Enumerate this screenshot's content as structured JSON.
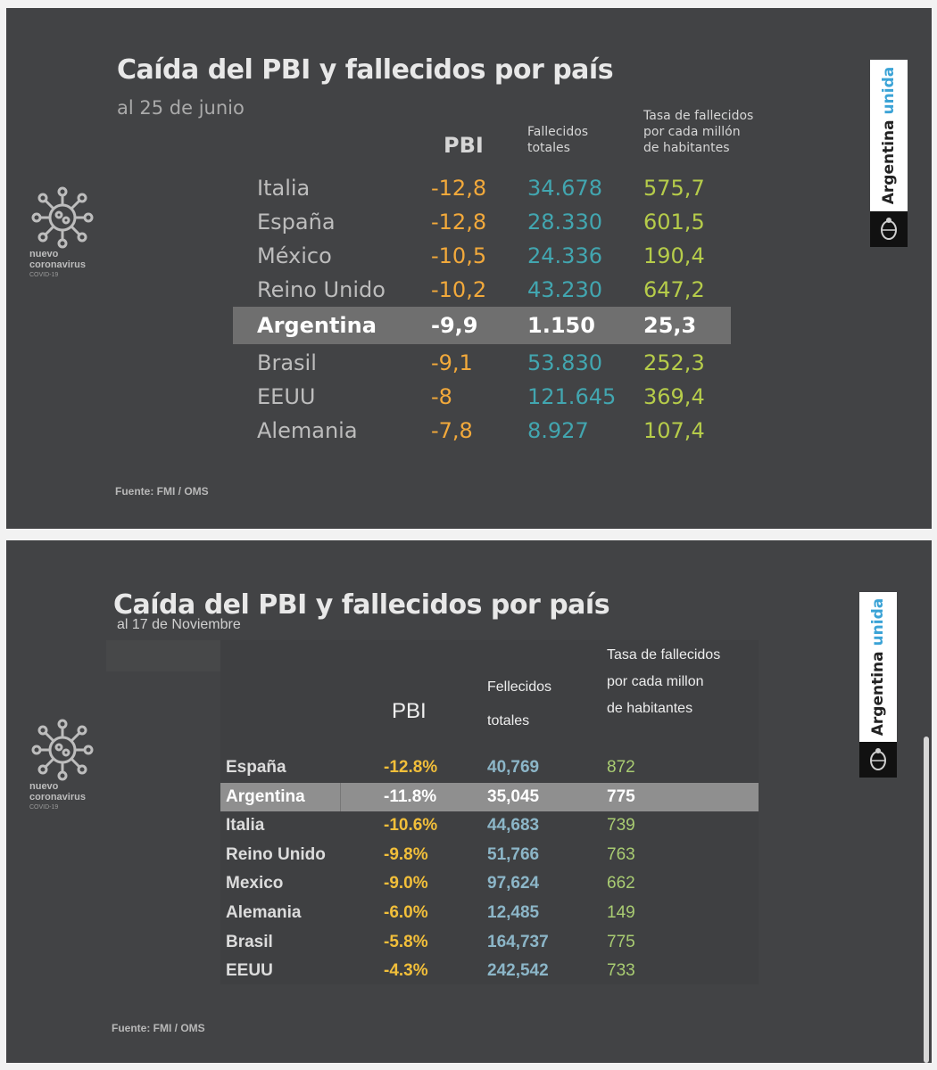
{
  "colors": {
    "panel_bg": "#424345",
    "pbi": "#f2a93b",
    "fallecidos": "#42a6b0",
    "tasa": "#b6cc4a",
    "highlight_bg": "#6f6f6f",
    "badge_accent": "#3ba3d6"
  },
  "branding": {
    "virus_line1": "nuevo",
    "virus_line2": "coronavirus",
    "virus_line3": "COVID-19",
    "badge_text": "Argentina",
    "badge_accent_text": "unida",
    "virus_icon": "virus-icon",
    "shield_icon": "argentina-shield-icon"
  },
  "chart_data": [
    {
      "type": "table",
      "title": "Caída del PBI y fallecidos por país",
      "subtitle": "al 25 de junio",
      "columns": {
        "pbi": "PBI",
        "fallecidos": [
          "Fallecidos",
          "totales"
        ],
        "tasa": [
          "Tasa de fallecidos",
          "por cada millón",
          "de habitantes"
        ]
      },
      "highlight": "Argentina",
      "rows": [
        {
          "country": "Italia",
          "pbi": "-12,8",
          "fallecidos": "34.678",
          "tasa": "575,7"
        },
        {
          "country": "España",
          "pbi": "-12,8",
          "fallecidos": "28.330",
          "tasa": "601,5"
        },
        {
          "country": "México",
          "pbi": "-10,5",
          "fallecidos": "24.336",
          "tasa": "190,4"
        },
        {
          "country": "Reino Unido",
          "pbi": "-10,2",
          "fallecidos": "43.230",
          "tasa": "647,2"
        },
        {
          "country": "Argentina",
          "pbi": "-9,9",
          "fallecidos": "1.150",
          "tasa": "25,3"
        },
        {
          "country": "Brasil",
          "pbi": "-9,1",
          "fallecidos": "53.830",
          "tasa": "252,3"
        },
        {
          "country": "EEUU",
          "pbi": "-8",
          "fallecidos": "121.645",
          "tasa": "369,4"
        },
        {
          "country": "Alemania",
          "pbi": "-7,8",
          "fallecidos": "8.927",
          "tasa": "107,4"
        }
      ],
      "source": "Fuente: FMI / OMS"
    },
    {
      "type": "table",
      "title": "Caída del PBI y fallecidos por país",
      "subtitle": "al 17 de Noviembre",
      "columns": {
        "pbi": "PBI",
        "fallecidos": [
          "Fellecidos",
          "totales"
        ],
        "tasa": [
          "Tasa de fallecidos",
          "por cada millon",
          "de habitantes"
        ]
      },
      "highlight": "Argentina",
      "rows": [
        {
          "country": "España",
          "pbi": "-12.8%",
          "fallecidos": "40,769",
          "tasa": "872"
        },
        {
          "country": "Argentina",
          "pbi": "-11.8%",
          "fallecidos": "35,045",
          "tasa": "775"
        },
        {
          "country": "Italia",
          "pbi": "-10.6%",
          "fallecidos": "44,683",
          "tasa": "739"
        },
        {
          "country": "Reino Unido",
          "pbi": "-9.8%",
          "fallecidos": "51,766",
          "tasa": "763"
        },
        {
          "country": "Mexico",
          "pbi": "-9.0%",
          "fallecidos": "97,624",
          "tasa": "662"
        },
        {
          "country": "Alemania",
          "pbi": "-6.0%",
          "fallecidos": "12,485",
          "tasa": "149"
        },
        {
          "country": "Brasil",
          "pbi": "-5.8%",
          "fallecidos": "164,737",
          "tasa": "775"
        },
        {
          "country": "EEUU",
          "pbi": "-4.3%",
          "fallecidos": "242,542",
          "tasa": "733"
        }
      ],
      "source": "Fuente: FMI / OMS"
    }
  ]
}
